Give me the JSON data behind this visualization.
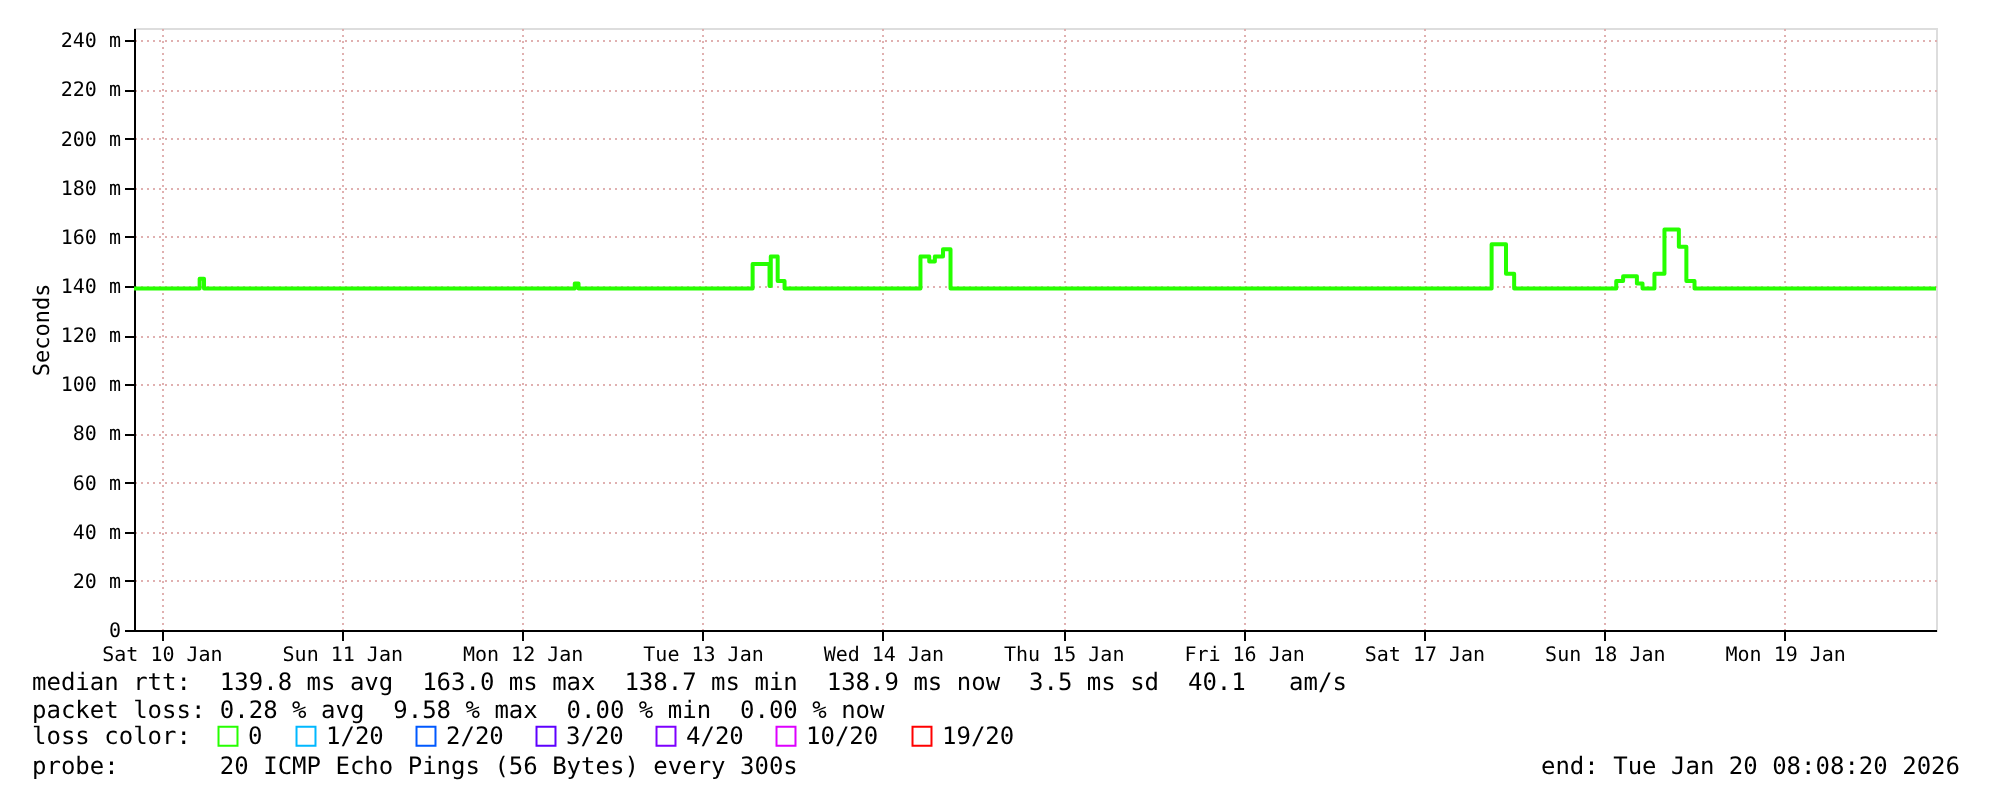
{
  "chart_data": {
    "type": "step",
    "ylabel": "Seconds",
    "x": [
      "2026-01-10T08:21",
      "2026-01-10T17:05",
      "2026-01-10T17:40",
      "2026-01-12T19:00",
      "2026-01-12T19:30",
      "2026-01-13T18:40",
      "2026-01-13T20:55",
      "2026-01-13T21:05",
      "2026-01-13T22:00",
      "2026-01-13T22:55",
      "2026-01-14T17:00",
      "2026-01-14T18:10",
      "2026-01-14T18:55",
      "2026-01-14T20:00",
      "2026-01-14T21:00",
      "2026-01-17T21:00",
      "2026-01-17T22:55",
      "2026-01-18T00:00",
      "2026-01-18T13:35",
      "2026-01-18T14:30",
      "2026-01-18T16:20",
      "2026-01-18T17:05",
      "2026-01-18T18:40",
      "2026-01-18T20:00",
      "2026-01-18T21:55",
      "2026-01-18T22:55",
      "2026-01-19T00:00",
      "2026-01-20T08:08"
    ],
    "series": [
      {
        "name": "0",
        "color": "#26ff00",
        "values": [
          139,
          143,
          139,
          141,
          139,
          149,
          140,
          152,
          142,
          139,
          152,
          150,
          152,
          155,
          139,
          157,
          145,
          139,
          142,
          144,
          141,
          139,
          145,
          163,
          156,
          142,
          139,
          139
        ]
      },
      {
        "name": "1/20",
        "color": "#00b8ff",
        "values": [
          null,
          null,
          null,
          null,
          null,
          null,
          null,
          null,
          null,
          null,
          null,
          null,
          null,
          null,
          null,
          null,
          null,
          null,
          null,
          null,
          null,
          null,
          null,
          null,
          null,
          null,
          null,
          null
        ]
      },
      {
        "name": "2/20",
        "color": "#0059ff",
        "values": [
          null,
          null,
          null,
          null,
          null,
          null,
          null,
          null,
          null,
          null,
          null,
          null,
          null,
          null,
          null,
          null,
          null,
          null,
          null,
          null,
          null,
          null,
          null,
          null,
          null,
          null,
          null,
          null
        ]
      },
      {
        "name": "3/20",
        "color": "#5e00ff",
        "values": [
          null,
          null,
          null,
          null,
          null,
          null,
          null,
          null,
          null,
          null,
          null,
          null,
          null,
          null,
          null,
          null,
          null,
          null,
          null,
          null,
          null,
          null,
          null,
          null,
          null,
          null,
          null,
          null
        ]
      },
      {
        "name": "4/20",
        "color": "#7e00ff",
        "values": [
          null,
          null,
          null,
          null,
          null,
          null,
          null,
          null,
          null,
          null,
          null,
          null,
          null,
          null,
          null,
          null,
          null,
          null,
          null,
          null,
          null,
          null,
          null,
          null,
          null,
          null,
          null,
          null
        ]
      },
      {
        "name": "10/20",
        "color": "#dd00ff",
        "values": [
          null,
          null,
          null,
          null,
          null,
          null,
          null,
          null,
          null,
          null,
          null,
          null,
          null,
          null,
          null,
          null,
          null,
          null,
          null,
          null,
          null,
          null,
          null,
          null,
          null,
          null,
          null,
          null
        ]
      },
      {
        "name": "19/20",
        "color": "#ff0000",
        "values": [
          null,
          null,
          null,
          null,
          null,
          null,
          null,
          null,
          null,
          null,
          null,
          null,
          null,
          null,
          null,
          null,
          null,
          null,
          null,
          null,
          null,
          null,
          null,
          null,
          null,
          null,
          null,
          null
        ]
      }
    ],
    "legend_title": "loss color:",
    "legend": "bottom",
    "xlim": [
      "2026-01-10T08:21",
      "2026-01-20T08:08"
    ],
    "xticks": [
      {
        "value": "2026-01-10T12:00",
        "label": "Sat 10 Jan"
      },
      {
        "value": "2026-01-11T12:00",
        "label": "Sun 11 Jan"
      },
      {
        "value": "2026-01-12T12:00",
        "label": "Mon 12 Jan"
      },
      {
        "value": "2026-01-13T12:00",
        "label": "Tue 13 Jan"
      },
      {
        "value": "2026-01-14T12:00",
        "label": "Wed 14 Jan"
      },
      {
        "value": "2026-01-15T12:00",
        "label": "Thu 15 Jan"
      },
      {
        "value": "2026-01-16T12:00",
        "label": "Fri 16 Jan"
      },
      {
        "value": "2026-01-17T12:00",
        "label": "Sat 17 Jan"
      },
      {
        "value": "2026-01-18T12:00",
        "label": "Sun 18 Jan"
      },
      {
        "value": "2026-01-19T12:00",
        "label": "Mon 19 Jan"
      }
    ],
    "ylim": [
      0,
      245
    ],
    "yticks": [
      0,
      {
        "value": 20,
        "label": "20 m"
      },
      {
        "value": 40,
        "label": "40 m"
      },
      {
        "value": 60,
        "label": "60 m"
      },
      {
        "value": 80,
        "label": "80 m"
      },
      {
        "value": 100,
        "label": "100 m"
      },
      {
        "value": 120,
        "label": "120 m"
      },
      {
        "value": 140,
        "label": "140 m"
      },
      {
        "value": 160,
        "label": "160 m"
      },
      {
        "value": 180,
        "label": "180 m"
      },
      {
        "value": 200,
        "label": "200 m"
      },
      {
        "value": 220,
        "label": "220 m"
      },
      {
        "value": 240,
        "label": "240 m"
      }
    ],
    "grid": true,
    "annotations": [
      "median rtt:  139.8 ms avg  163.0 ms max  138.7 ms min  138.9 ms now  3.5 ms sd  40.1   am/s",
      "packet loss: 0.28 % avg  9.58 % max  0.00 % min  0.00 % now",
      "probe:       20 ICMP Echo Pings (56 Bytes) every 300s",
      "end: Tue Jan 20 08:08:20 2026"
    ]
  }
}
